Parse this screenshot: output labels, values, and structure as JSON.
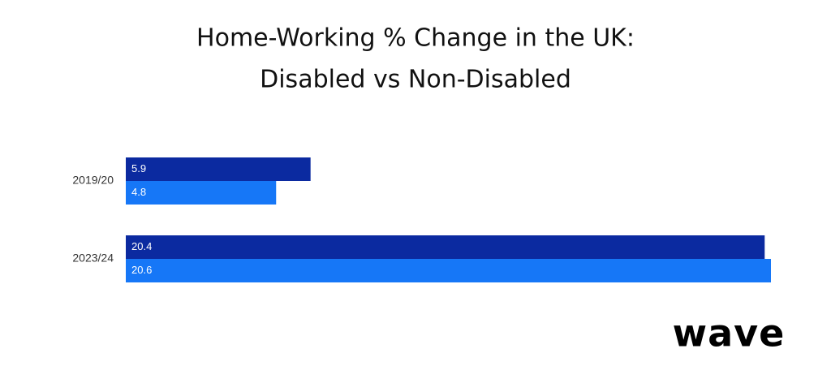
{
  "chart_data": {
    "type": "hbar",
    "title": [
      "Home-Working % Change in the UK:",
      "Disabled vs Non-Disabled"
    ],
    "categories": [
      "2019/20",
      "2023/24"
    ],
    "series": [
      {
        "color": "#0b2aa0",
        "values": [
          5.9,
          20.4
        ]
      },
      {
        "color": "#1677f7",
        "values": [
          4.8,
          20.6
        ]
      }
    ]
  },
  "logo": "wave"
}
